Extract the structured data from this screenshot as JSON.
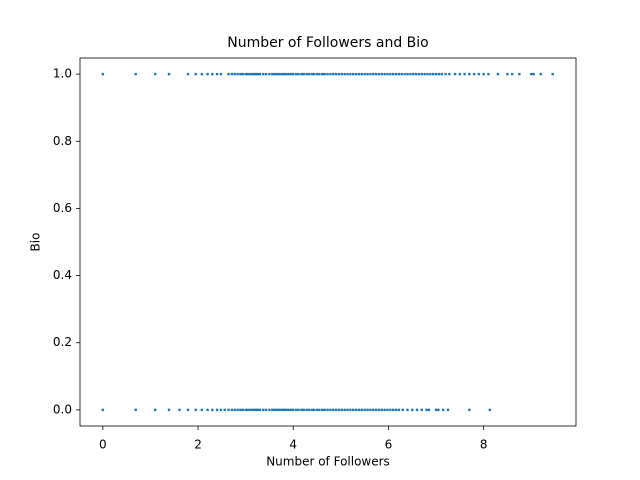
{
  "chart_data": {
    "type": "scatter",
    "title": "Number of Followers and Bio",
    "x_label": "Number of Followers",
    "y_label": "Bio",
    "xlim": [
      -0.48,
      9.94
    ],
    "ylim": [
      -0.048,
      1.048
    ],
    "xticks": [
      0,
      2,
      4,
      6,
      8
    ],
    "yticks": [
      {
        "value": 0,
        "label": "0.0"
      },
      {
        "value": 0.2,
        "label": "0.2"
      },
      {
        "value": 0.4,
        "label": "0.4"
      },
      {
        "value": 0.6,
        "label": "0.6"
      },
      {
        "value": 0.8,
        "label": "0.8"
      },
      {
        "value": 1,
        "label": "1.0"
      }
    ],
    "grid": false,
    "series": [
      {
        "color": "#1f77b4",
        "x": [
          0,
          0.69,
          1.1,
          1.39,
          1.79,
          1.95,
          2.08,
          2.2,
          2.3,
          2.4,
          2.48,
          2.64,
          2.71,
          2.77,
          2.83,
          2.89,
          2.94,
          3.0,
          3.04,
          3.09,
          3.14,
          3.18,
          3.22,
          3.26,
          3.3,
          3.37,
          3.43,
          3.5,
          3.56,
          3.61,
          3.66,
          3.71,
          3.76,
          3.81,
          3.85,
          3.9,
          3.95,
          4.0,
          4.06,
          4.11,
          4.17,
          4.22,
          4.28,
          4.33,
          4.39,
          4.44,
          4.5,
          4.55,
          4.61,
          4.66,
          4.72,
          4.78,
          4.84,
          4.9,
          4.96,
          5.02,
          5.08,
          5.14,
          5.2,
          5.26,
          5.32,
          5.38,
          5.44,
          5.5,
          5.56,
          5.62,
          5.68,
          5.74,
          5.8,
          5.86,
          5.92,
          5.98,
          6.04,
          6.1,
          6.16,
          6.22,
          6.28,
          6.34,
          6.4,
          6.46,
          6.52,
          6.58,
          6.64,
          6.7,
          6.76,
          6.82,
          6.88,
          6.94,
          7.0,
          7.06,
          7.12,
          7.2,
          7.28,
          7.4,
          7.5,
          7.6,
          7.7,
          7.8,
          7.9,
          8.0,
          8.1,
          8.3,
          8.5,
          8.6,
          8.75,
          9.0,
          9.05,
          9.2,
          9.45
        ],
        "values": [
          1,
          1,
          1,
          1,
          1,
          1,
          1,
          1,
          1,
          1,
          1,
          1,
          1,
          1,
          1,
          1,
          1,
          1,
          1,
          1,
          1,
          1,
          1,
          1,
          1,
          1,
          1,
          1,
          1,
          1,
          1,
          1,
          1,
          1,
          1,
          1,
          1,
          1,
          1,
          1,
          1,
          1,
          1,
          1,
          1,
          1,
          1,
          1,
          1,
          1,
          1,
          1,
          1,
          1,
          1,
          1,
          1,
          1,
          1,
          1,
          1,
          1,
          1,
          1,
          1,
          1,
          1,
          1,
          1,
          1,
          1,
          1,
          1,
          1,
          1,
          1,
          1,
          1,
          1,
          1,
          1,
          1,
          1,
          1,
          1,
          1,
          1,
          1,
          1,
          1,
          1,
          1,
          1,
          1,
          1,
          1,
          1,
          1,
          1,
          1,
          1,
          1,
          1,
          1,
          1,
          1,
          1,
          1,
          1
        ]
      },
      {
        "color": "#1f77b4",
        "x": [
          0,
          0.69,
          1.1,
          1.39,
          1.61,
          1.79,
          1.95,
          2.08,
          2.2,
          2.3,
          2.4,
          2.48,
          2.56,
          2.64,
          2.71,
          2.77,
          2.83,
          2.89,
          2.94,
          3.0,
          3.04,
          3.09,
          3.14,
          3.18,
          3.22,
          3.26,
          3.3,
          3.37,
          3.43,
          3.5,
          3.56,
          3.61,
          3.66,
          3.71,
          3.76,
          3.81,
          3.85,
          3.9,
          3.95,
          4.0,
          4.06,
          4.11,
          4.17,
          4.22,
          4.28,
          4.33,
          4.39,
          4.44,
          4.5,
          4.55,
          4.61,
          4.66,
          4.72,
          4.78,
          4.84,
          4.9,
          4.96,
          5.02,
          5.08,
          5.14,
          5.2,
          5.26,
          5.32,
          5.38,
          5.44,
          5.5,
          5.56,
          5.62,
          5.68,
          5.74,
          5.8,
          5.86,
          5.92,
          5.98,
          6.04,
          6.1,
          6.16,
          6.22,
          6.3,
          6.4,
          6.5,
          6.6,
          6.7,
          6.8,
          6.85,
          7.0,
          7.05,
          7.15,
          7.25,
          7.7,
          8.13
        ],
        "values": [
          0,
          0,
          0,
          0,
          0,
          0,
          0,
          0,
          0,
          0,
          0,
          0,
          0,
          0,
          0,
          0,
          0,
          0,
          0,
          0,
          0,
          0,
          0,
          0,
          0,
          0,
          0,
          0,
          0,
          0,
          0,
          0,
          0,
          0,
          0,
          0,
          0,
          0,
          0,
          0,
          0,
          0,
          0,
          0,
          0,
          0,
          0,
          0,
          0,
          0,
          0,
          0,
          0,
          0,
          0,
          0,
          0,
          0,
          0,
          0,
          0,
          0,
          0,
          0,
          0,
          0,
          0,
          0,
          0,
          0,
          0,
          0,
          0,
          0,
          0,
          0,
          0,
          0,
          0,
          0,
          0,
          0,
          0,
          0,
          0,
          0,
          0,
          0,
          0,
          0,
          0
        ]
      }
    ]
  }
}
